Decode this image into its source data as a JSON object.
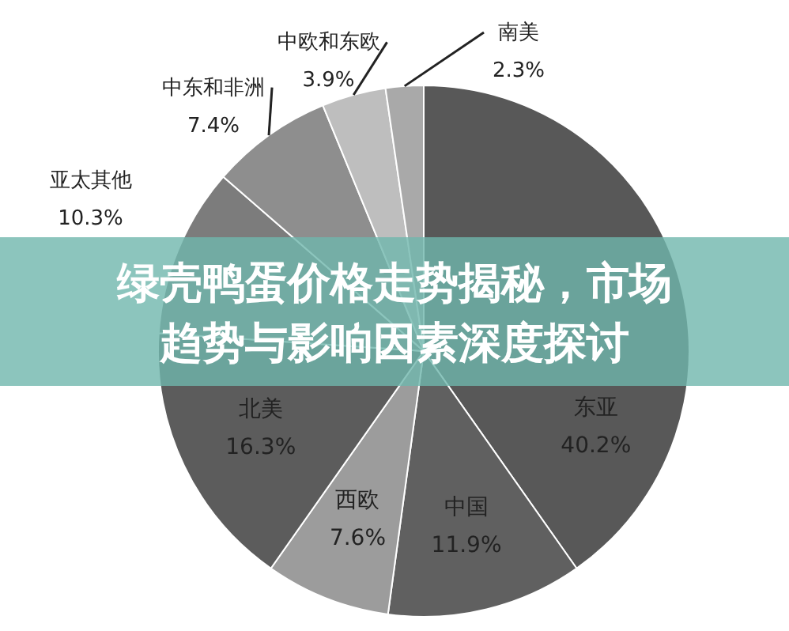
{
  "chart_data": {
    "type": "pie",
    "title": "绿壳鸭蛋价格走势揭秘，市场趋势与影响因素深度探讨",
    "categories": [
      "东亚",
      "中国",
      "西欧",
      "北美",
      "亚太其他",
      "中东和非洲",
      "中欧和东欧",
      "南美"
    ],
    "values": [
      40.2,
      11.9,
      7.6,
      16.3,
      10.3,
      7.4,
      3.9,
      2.3
    ],
    "colors": [
      "#585858",
      "#606060",
      "#9c9c9c",
      "#5c5c5c",
      "#7c7c7c",
      "#8e8e8e",
      "#bebebe",
      "#a9a9a9"
    ],
    "data_labels": true,
    "value_labels": [
      "40.2%",
      "11.9%",
      "7.6%",
      "16.3%",
      "10.3%",
      "7.4%",
      "3.9%",
      "2.3%"
    ]
  }
}
